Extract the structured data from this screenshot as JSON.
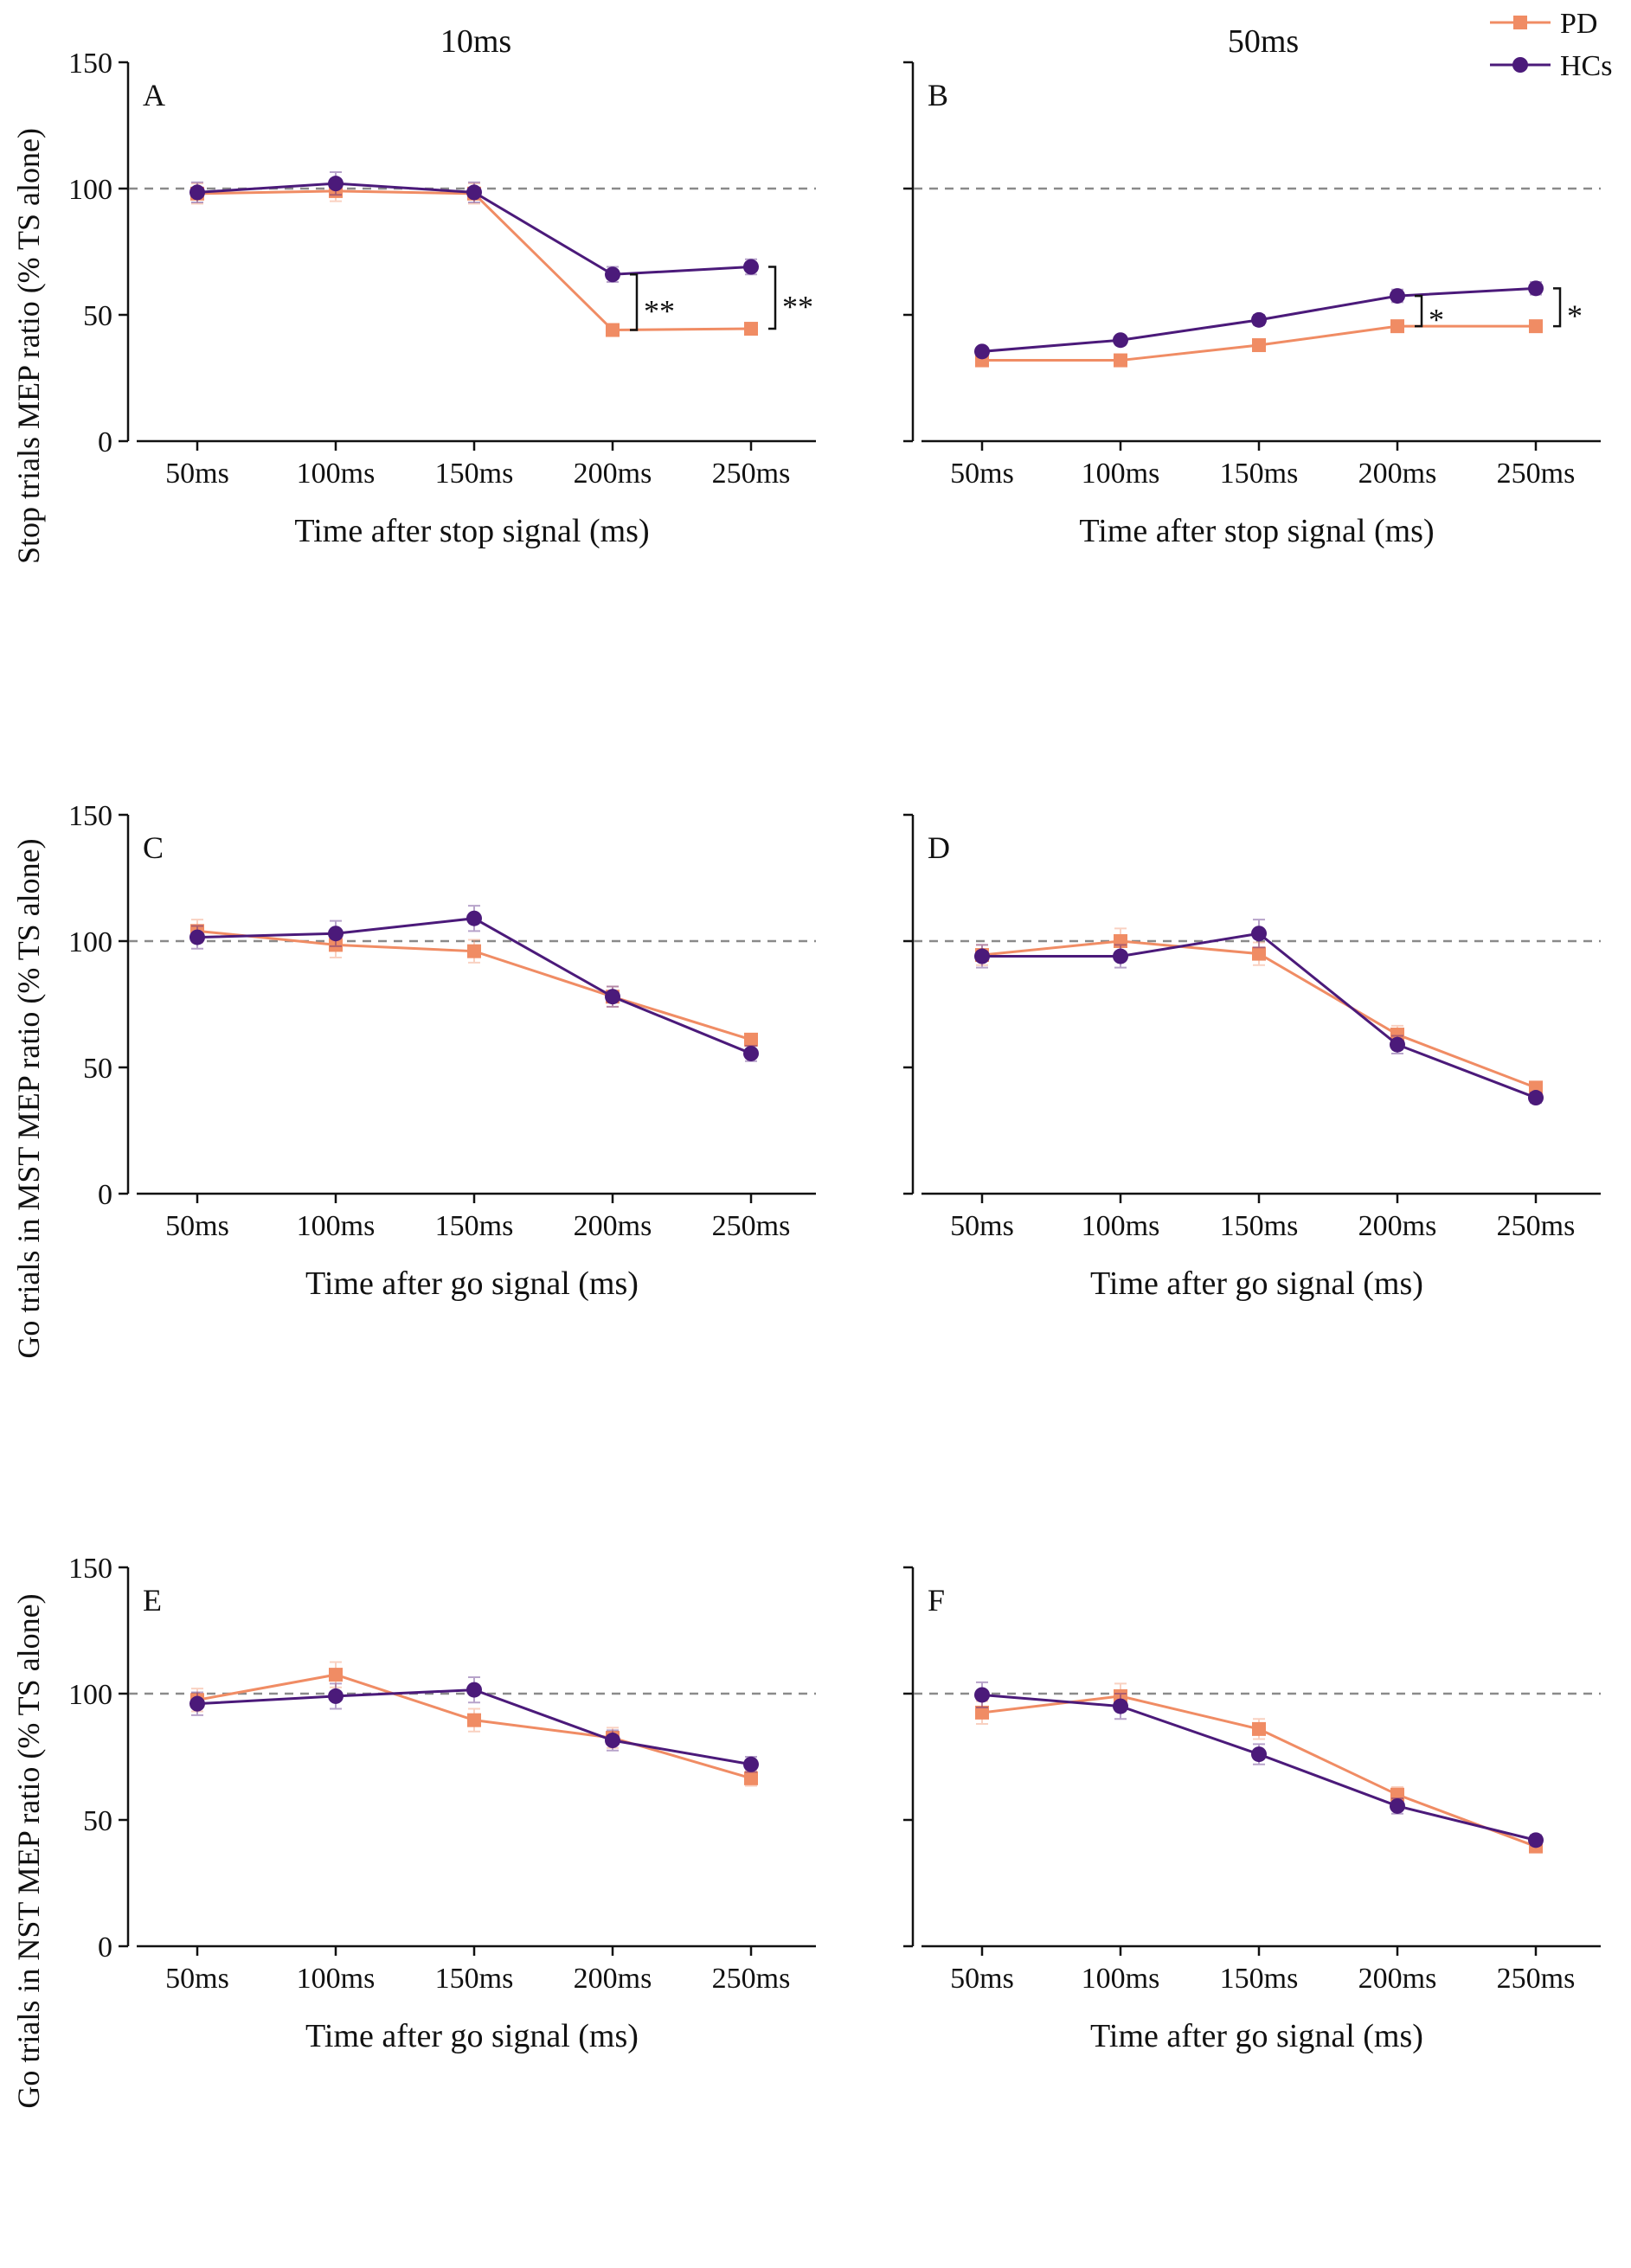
{
  "legend": {
    "location": "top-right",
    "entries": [
      {
        "name": "PD",
        "color": "#F08C64",
        "marker": "square"
      },
      {
        "name": "HCs",
        "color": "#4B1A7A",
        "marker": "circle"
      }
    ]
  },
  "column_titles": [
    "10ms",
    "50ms"
  ],
  "row_ylabels": [
    "Stop trials MEP ratio (% TS alone)",
    "Go trials in MST MEP ratio (% TS alone)",
    "Go trials in NST MEP ratio (% TS alone)"
  ],
  "chart_data": [
    {
      "panel": "A",
      "type": "line",
      "row": 0,
      "col": 0,
      "xlabel": "Time after stop signal (ms)",
      "categories": [
        "50ms",
        "100ms",
        "150ms",
        "200ms",
        "250ms"
      ],
      "ylim": [
        0,
        150
      ],
      "yticks": [
        0,
        50,
        100,
        150
      ],
      "reference_line": 100,
      "series": [
        {
          "name": "PD",
          "values": [
            98,
            99,
            98,
            44,
            44.5
          ],
          "errors": [
            4,
            4,
            4,
            1.5,
            1.5
          ]
        },
        {
          "name": "HCs",
          "values": [
            98.5,
            102,
            98.5,
            66,
            69
          ],
          "errors": [
            4,
            4.5,
            4,
            3,
            3
          ]
        }
      ],
      "annotations": [
        {
          "category_index": 3,
          "label": "**"
        },
        {
          "category_index": 4,
          "label": "**"
        }
      ]
    },
    {
      "panel": "B",
      "type": "line",
      "row": 0,
      "col": 1,
      "xlabel": "Time after stop signal (ms)",
      "categories": [
        "50ms",
        "100ms",
        "150ms",
        "200ms",
        "250ms"
      ],
      "ylim": [
        0,
        150
      ],
      "yticks": [
        0,
        50,
        100,
        150
      ],
      "reference_line": 100,
      "series": [
        {
          "name": "PD",
          "values": [
            32,
            32,
            38,
            45.5,
            45.5
          ],
          "errors": [
            1.5,
            1.5,
            1.5,
            2,
            1.5
          ]
        },
        {
          "name": "HCs",
          "values": [
            35.5,
            40,
            48,
            57.5,
            60.5
          ],
          "errors": [
            1.5,
            1.5,
            2,
            2.5,
            2.5
          ]
        }
      ],
      "annotations": [
        {
          "category_index": 3,
          "label": "*"
        },
        {
          "category_index": 4,
          "label": "*"
        }
      ]
    },
    {
      "panel": "C",
      "type": "line",
      "row": 1,
      "col": 0,
      "xlabel": "Time after go signal (ms)",
      "categories": [
        "50ms",
        "100ms",
        "150ms",
        "200ms",
        "250ms"
      ],
      "ylim": [
        0,
        150
      ],
      "yticks": [
        0,
        50,
        100,
        150
      ],
      "reference_line": 100,
      "series": [
        {
          "name": "PD",
          "values": [
            104,
            98.5,
            96,
            78,
            61
          ],
          "errors": [
            4.5,
            5,
            4.5,
            4,
            2
          ]
        },
        {
          "name": "HCs",
          "values": [
            101.5,
            103,
            109,
            78,
            55.5
          ],
          "errors": [
            4.5,
            5,
            5,
            4,
            3
          ]
        }
      ],
      "annotations": []
    },
    {
      "panel": "D",
      "type": "line",
      "row": 1,
      "col": 1,
      "xlabel": "Time after go signal (ms)",
      "categories": [
        "50ms",
        "100ms",
        "150ms",
        "200ms",
        "250ms"
      ],
      "ylim": [
        0,
        150
      ],
      "yticks": [
        0,
        50,
        100,
        150
      ],
      "reference_line": 100,
      "series": [
        {
          "name": "PD",
          "values": [
            94.5,
            100,
            95,
            63,
            42
          ],
          "errors": [
            4,
            5,
            4.5,
            3.5,
            2
          ]
        },
        {
          "name": "HCs",
          "values": [
            94,
            94,
            103,
            59,
            38
          ],
          "errors": [
            4.5,
            4.5,
            5.5,
            3.5,
            2
          ]
        }
      ],
      "annotations": []
    },
    {
      "panel": "E",
      "type": "line",
      "row": 2,
      "col": 0,
      "xlabel": "Time after go signal (ms)",
      "categories": [
        "50ms",
        "100ms",
        "150ms",
        "200ms",
        "250ms"
      ],
      "ylim": [
        0,
        150
      ],
      "yticks": [
        0,
        50,
        100,
        150
      ],
      "reference_line": 100,
      "series": [
        {
          "name": "PD",
          "values": [
            97.5,
            107.5,
            89.5,
            82.5,
            66.5
          ],
          "errors": [
            4.5,
            5,
            4.5,
            4,
            3
          ]
        },
        {
          "name": "HCs",
          "values": [
            96,
            99,
            101.5,
            81.5,
            72
          ],
          "errors": [
            4.5,
            5,
            5,
            4,
            3
          ]
        }
      ],
      "annotations": []
    },
    {
      "panel": "F",
      "type": "line",
      "row": 2,
      "col": 1,
      "xlabel": "Time after go signal (ms)",
      "categories": [
        "50ms",
        "100ms",
        "150ms",
        "200ms",
        "250ms"
      ],
      "ylim": [
        0,
        150
      ],
      "yticks": [
        0,
        50,
        100,
        150
      ],
      "reference_line": 100,
      "series": [
        {
          "name": "PD",
          "values": [
            92.5,
            99,
            86,
            60,
            39.5
          ],
          "errors": [
            4.5,
            5,
            4,
            3,
            2
          ]
        },
        {
          "name": "HCs",
          "values": [
            99.5,
            95,
            76,
            55.5,
            42
          ],
          "errors": [
            5,
            5,
            4,
            3,
            2
          ]
        }
      ],
      "annotations": []
    }
  ]
}
